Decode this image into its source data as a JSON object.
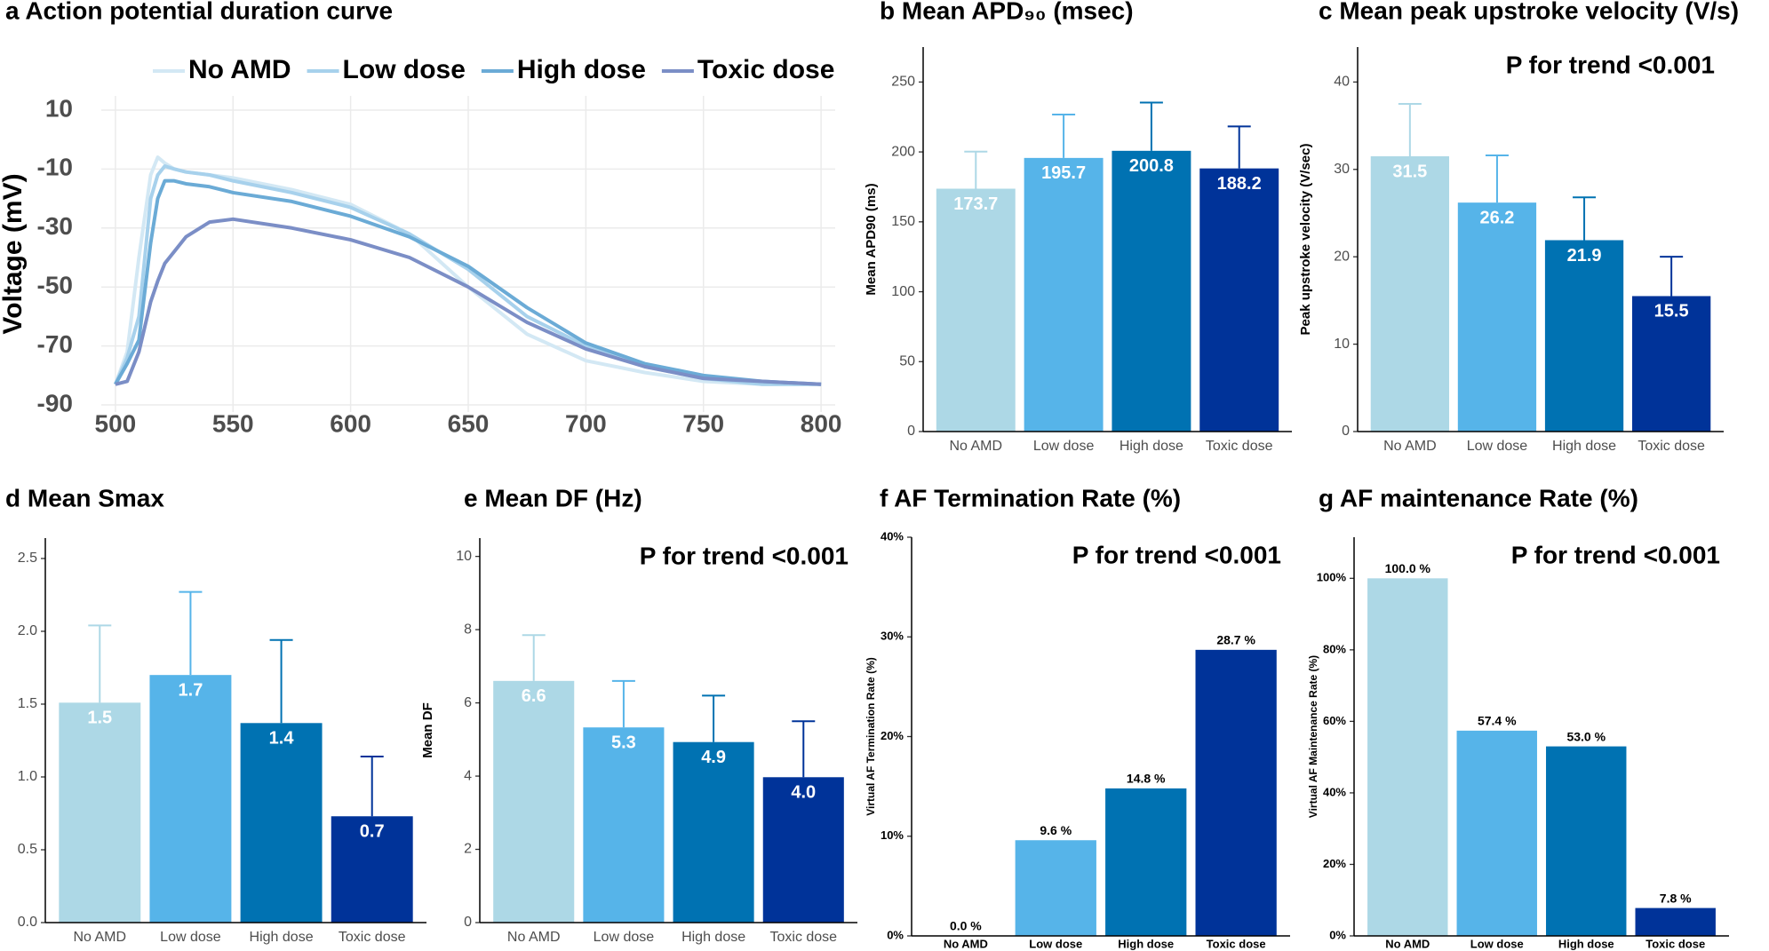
{
  "chart_data": [
    {
      "type": "line",
      "title": "a Action potential duration curve",
      "ylabel": "Voltage (mV)",
      "x": [
        500,
        505,
        510,
        515,
        518,
        521,
        525,
        530,
        540,
        550,
        575,
        600,
        625,
        650,
        675,
        700,
        725,
        750,
        775,
        800
      ],
      "series": [
        {
          "name": "No AMD",
          "color": "#d3e8f4",
          "values": [
            -83,
            -72,
            -40,
            -12,
            -6,
            -8,
            -10,
            -11,
            -12,
            -13,
            -17,
            -22,
            -32,
            -50,
            -66,
            -75,
            -79,
            -82,
            -83,
            -83
          ]
        },
        {
          "name": "Low dose",
          "color": "#a7d1ec",
          "values": [
            -83,
            -74,
            -60,
            -20,
            -12,
            -9,
            -10,
            -11,
            -12,
            -14,
            -18,
            -23,
            -32,
            -44,
            -60,
            -70,
            -77,
            -81,
            -83,
            -83
          ]
        },
        {
          "name": "High dose",
          "color": "#6babd6",
          "values": [
            -83,
            -76,
            -68,
            -35,
            -20,
            -14,
            -14,
            -15,
            -16,
            -18,
            -21,
            -26,
            -33,
            -43,
            -57,
            -69,
            -76,
            -80,
            -82,
            -83
          ]
        },
        {
          "name": "Toxic dose",
          "color": "#7b8ec6",
          "values": [
            -83,
            -82,
            -72,
            -55,
            -48,
            -42,
            -38,
            -33,
            -28,
            -27,
            -30,
            -34,
            -40,
            -50,
            -62,
            -71,
            -77,
            -81,
            -82,
            -83
          ]
        }
      ],
      "xlim": [
        494,
        806
      ],
      "ylim": [
        -92.4,
        14.8
      ],
      "xticks": [
        500,
        550,
        600,
        650,
        700,
        750,
        800
      ],
      "yticks": [
        10,
        -10,
        -30,
        -50,
        -70,
        -90
      ],
      "grid": true,
      "legend": "top"
    },
    {
      "type": "bar",
      "title": "b Mean APD₉₀ (msec)",
      "ylabel": "Mean APD90 (ms)",
      "categories": [
        "No AMD",
        "Low dose",
        "High dose",
        "Toxic dose"
      ],
      "values": [
        173.7,
        195.7,
        200.8,
        188.2
      ],
      "errors": [
        26.5,
        31,
        34.5,
        30
      ],
      "colors": [
        "#add8e6",
        "#56b4e9",
        "#0072b2",
        "#003399"
      ],
      "ylim": [
        0,
        275
      ],
      "yticks": [
        0,
        50,
        100,
        150,
        200,
        250
      ]
    },
    {
      "type": "bar",
      "title": "c Mean peak upstroke velocity (V/s)",
      "ylabel": "Peak upstroke velocity (V/sec)",
      "annotation": "P for trend <0.001",
      "categories": [
        "No AMD",
        "Low dose",
        "High dose",
        "Toxic dose"
      ],
      "values": [
        31.5,
        26.2,
        21.9,
        15.5
      ],
      "errors": [
        6,
        5.4,
        4.9,
        4.5
      ],
      "colors": [
        "#add8e6",
        "#56b4e9",
        "#0072b2",
        "#003399"
      ],
      "ylim": [
        0,
        44
      ],
      "yticks": [
        0,
        10,
        20,
        30,
        40
      ]
    },
    {
      "type": "bar",
      "title": "d Mean Smax",
      "ylabel": "Mean Smax",
      "categories": [
        "No AMD",
        "Low dose",
        "High dose",
        "Toxic dose"
      ],
      "values": [
        1.51,
        1.7,
        1.37,
        0.73
      ],
      "value_labels": [
        "1.5",
        "1.7",
        "1.4",
        "0.7"
      ],
      "errors": [
        0.53,
        0.57,
        0.57,
        0.41
      ],
      "colors": [
        "#add8e6",
        "#56b4e9",
        "#0072b2",
        "#003399"
      ],
      "ylim": [
        0,
        2.64
      ],
      "yticks": [
        {
          "value": 0,
          "label": "0.0"
        },
        0.5,
        {
          "value": 1,
          "label": "1.0"
        },
        1.5,
        {
          "value": 2,
          "label": "2.0"
        },
        2.5
      ]
    },
    {
      "type": "bar",
      "title": "e Mean DF (Hz)",
      "ylabel": "Mean DF",
      "annotation": "P for trend <0.001",
      "categories": [
        "No AMD",
        "Low dose",
        "High dose",
        "Toxic dose"
      ],
      "values": [
        6.6,
        5.33,
        4.93,
        3.97
      ],
      "value_labels": [
        "6.6",
        "5.3",
        "4.9",
        "4.0"
      ],
      "errors": [
        1.25,
        1.27,
        1.27,
        1.53
      ],
      "colors": [
        "#add8e6",
        "#56b4e9",
        "#0072b2",
        "#003399"
      ],
      "ylim": [
        0,
        10.5
      ],
      "yticks": [
        0,
        2,
        4,
        6,
        8,
        10
      ]
    },
    {
      "type": "bar",
      "title": "f AF Termination Rate (%)",
      "ylabel": "Virtual AF Termination Rate (%)",
      "annotation": "P for trend <0.001",
      "categories": [
        "No AMD",
        "Low dose",
        "High dose",
        "Toxic dose"
      ],
      "values": [
        0,
        9.6,
        14.8,
        28.7
      ],
      "value_labels": [
        "0.0 %",
        "9.6 %",
        "14.8 %",
        "28.7 %"
      ],
      "colors": [
        "#add8e6",
        "#56b4e9",
        "#0072b2",
        "#003399"
      ],
      "ylim": [
        0,
        40
      ],
      "yticks": [
        {
          "value": 0,
          "label": "0%"
        },
        {
          "value": 10,
          "label": "10%"
        },
        {
          "value": 20,
          "label": "20%"
        },
        {
          "value": 30,
          "label": "30%"
        },
        {
          "value": 40,
          "label": "40%"
        }
      ]
    },
    {
      "type": "bar",
      "title": "g AF maintenance Rate (%)",
      "ylabel": "Virtual AF Maintenance Rate (%)",
      "annotation": "P for trend <0.001",
      "categories": [
        "No AMD",
        "Low dose",
        "High dose",
        "Toxic dose"
      ],
      "values": [
        100,
        57.4,
        53,
        7.8
      ],
      "value_labels": [
        "100.0 %",
        "57.4 %",
        "53.0 %",
        "7.8 %"
      ],
      "colors": [
        "#add8e6",
        "#56b4e9",
        "#0072b2",
        "#003399"
      ],
      "ylim": [
        0,
        111.5
      ],
      "yticks": [
        {
          "value": 0,
          "label": "0%"
        },
        {
          "value": 20,
          "label": "20%"
        },
        {
          "value": 40,
          "label": "40%"
        },
        {
          "value": 60,
          "label": "60%"
        },
        {
          "value": 80,
          "label": "80%"
        },
        {
          "value": 100,
          "label": "100%"
        }
      ]
    }
  ]
}
